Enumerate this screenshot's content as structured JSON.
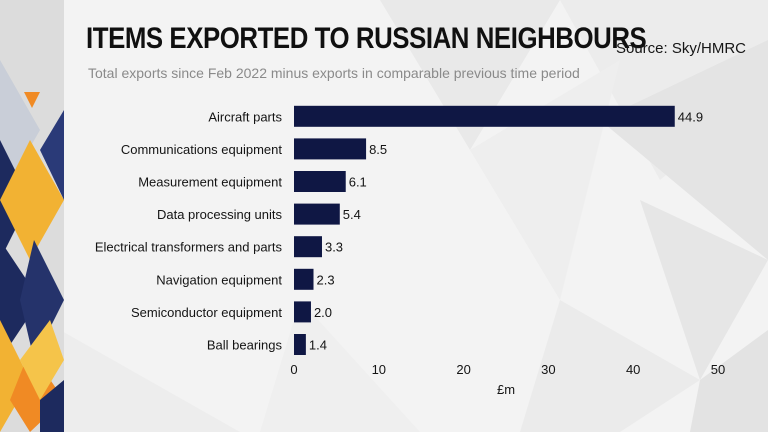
{
  "header": {
    "title": "ITEMS EXPORTED TO RUSSIAN NEIGHBOURS",
    "subtitle": "Total exports since Feb 2022 minus exports in comparable previous time period",
    "source": "Source: Sky/HMRC"
  },
  "colors": {
    "bar": "#0f1744",
    "navy": "#1d2a5e",
    "gold": "#f2b233",
    "orange": "#f08a24"
  },
  "chart_data": {
    "type": "bar",
    "orientation": "horizontal",
    "title": "ITEMS EXPORTED TO RUSSIAN NEIGHBOURS",
    "subtitle": "Total exports since Feb 2022 minus exports in comparable previous time period",
    "categories": [
      "Aircraft parts",
      "Communications equipment",
      "Measurement equipment",
      "Data processing units",
      "Electrical transformers and parts",
      "Navigation equipment",
      "Semiconductor equipment",
      "Ball bearings"
    ],
    "values": [
      44.9,
      8.5,
      6.1,
      5.4,
      3.3,
      2.3,
      2.0,
      1.4
    ],
    "value_labels": [
      "44.9",
      "8.5",
      "6.1",
      "5.4",
      "3.3",
      "2.3",
      "2.0",
      "1.4"
    ],
    "xlabel": "£m",
    "ylabel": "",
    "xlim": [
      0,
      50
    ],
    "xticks": [
      0,
      10,
      20,
      30,
      40,
      50
    ],
    "grid": false
  }
}
